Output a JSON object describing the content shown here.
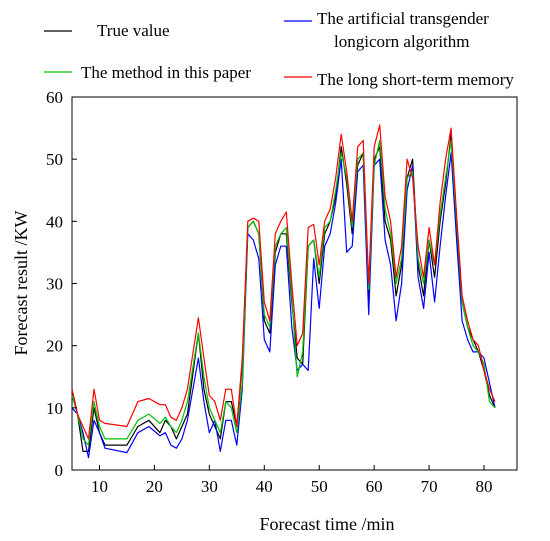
{
  "chart_data": {
    "type": "line",
    "xlabel": "Forecast time /min",
    "ylabel": "Forecast result /KW",
    "xlim": [
      5,
      86
    ],
    "ylim": [
      0,
      60
    ],
    "xticks": [
      10,
      20,
      30,
      40,
      50,
      60,
      70,
      80
    ],
    "yticks": [
      0,
      10,
      20,
      30,
      40,
      50,
      60
    ],
    "grid": false,
    "legend": [
      {
        "name": "True value",
        "color": "#000000"
      },
      {
        "name": "The artificial transgender longicorn algorithm",
        "name_line1": "The artificial transgender",
        "name_line2": "longicorn algorithm",
        "color": "#0000ff"
      },
      {
        "name": "The method in this paper",
        "color": "#00c000"
      },
      {
        "name": "The long short-term memory",
        "color": "#ff0000"
      }
    ],
    "series": [
      {
        "name": "True value",
        "color": "#000000",
        "points": [
          [
            5,
            13
          ],
          [
            6,
            9
          ],
          [
            7,
            3
          ],
          [
            8,
            3
          ],
          [
            9,
            10
          ],
          [
            10,
            6
          ],
          [
            11,
            4
          ],
          [
            15,
            4
          ],
          [
            17,
            7
          ],
          [
            19,
            8
          ],
          [
            21,
            6
          ],
          [
            22,
            8
          ],
          [
            23,
            7
          ],
          [
            24,
            5
          ],
          [
            25,
            7
          ],
          [
            26,
            9
          ],
          [
            28,
            22
          ],
          [
            29,
            13
          ],
          [
            30,
            9
          ],
          [
            31,
            7
          ],
          [
            32,
            5
          ],
          [
            33,
            11
          ],
          [
            34,
            11
          ],
          [
            35,
            7
          ],
          [
            36,
            17
          ],
          [
            37,
            39
          ],
          [
            38,
            40
          ],
          [
            39,
            38
          ],
          [
            40,
            24
          ],
          [
            41,
            22
          ],
          [
            42,
            35
          ],
          [
            43,
            38
          ],
          [
            44,
            38
          ],
          [
            45,
            27
          ],
          [
            46,
            18
          ],
          [
            47,
            17
          ],
          [
            48,
            36
          ],
          [
            49,
            37
          ],
          [
            50,
            30
          ],
          [
            51,
            38
          ],
          [
            52,
            40
          ],
          [
            53,
            44
          ],
          [
            54,
            52
          ],
          [
            55,
            46
          ],
          [
            56,
            38
          ],
          [
            57,
            49
          ],
          [
            58,
            51
          ],
          [
            59,
            27
          ],
          [
            60,
            50
          ],
          [
            61,
            52
          ],
          [
            62,
            40
          ],
          [
            63,
            37
          ],
          [
            64,
            28
          ],
          [
            65,
            33
          ],
          [
            66,
            47
          ],
          [
            67,
            50
          ],
          [
            68,
            33
          ],
          [
            69,
            28
          ],
          [
            70,
            37
          ],
          [
            71,
            31
          ],
          [
            72,
            40
          ],
          [
            73,
            46
          ],
          [
            74,
            54
          ],
          [
            75,
            38
          ],
          [
            76,
            27
          ],
          [
            77,
            23
          ],
          [
            78,
            21
          ],
          [
            79,
            19
          ],
          [
            80,
            16
          ],
          [
            81,
            12
          ],
          [
            82,
            10
          ]
        ]
      },
      {
        "name": "The artificial transgender longicorn algorithm",
        "color": "#0000ff",
        "points": [
          [
            5,
            10
          ],
          [
            6,
            9
          ],
          [
            7,
            6
          ],
          [
            8,
            2
          ],
          [
            9,
            8
          ],
          [
            10,
            6
          ],
          [
            11,
            3.5
          ],
          [
            15,
            2.8
          ],
          [
            17,
            6
          ],
          [
            19,
            7
          ],
          [
            21,
            5.5
          ],
          [
            22,
            6
          ],
          [
            23,
            4
          ],
          [
            24,
            3.5
          ],
          [
            25,
            5
          ],
          [
            26,
            8
          ],
          [
            28,
            18
          ],
          [
            29,
            11
          ],
          [
            30,
            6
          ],
          [
            31,
            8
          ],
          [
            32,
            3
          ],
          [
            33,
            8
          ],
          [
            34,
            8
          ],
          [
            35,
            4
          ],
          [
            36,
            13
          ],
          [
            37,
            38
          ],
          [
            38,
            37
          ],
          [
            39,
            34
          ],
          [
            40,
            21
          ],
          [
            41,
            19
          ],
          [
            42,
            33
          ],
          [
            43,
            36
          ],
          [
            44,
            36
          ],
          [
            45,
            23
          ],
          [
            46,
            16
          ],
          [
            47,
            17
          ],
          [
            48,
            16
          ],
          [
            49,
            34
          ],
          [
            50,
            26
          ],
          [
            51,
            36
          ],
          [
            52,
            38
          ],
          [
            53,
            43
          ],
          [
            54,
            50
          ],
          [
            55,
            35
          ],
          [
            56,
            36
          ],
          [
            57,
            48
          ],
          [
            58,
            49
          ],
          [
            59,
            25
          ],
          [
            60,
            49
          ],
          [
            61,
            50
          ],
          [
            62,
            37
          ],
          [
            63,
            33
          ],
          [
            64,
            24
          ],
          [
            65,
            30
          ],
          [
            66,
            45
          ],
          [
            67,
            49
          ],
          [
            68,
            31
          ],
          [
            69,
            26
          ],
          [
            70,
            35
          ],
          [
            71,
            27
          ],
          [
            72,
            36
          ],
          [
            73,
            44
          ],
          [
            74,
            51
          ],
          [
            75,
            37
          ],
          [
            76,
            24
          ],
          [
            77,
            21
          ],
          [
            78,
            19
          ],
          [
            79,
            19
          ],
          [
            80,
            18
          ],
          [
            81,
            14
          ],
          [
            82,
            10
          ]
        ]
      },
      {
        "name": "The method in this paper",
        "color": "#00c000",
        "points": [
          [
            5,
            12
          ],
          [
            6,
            9
          ],
          [
            7,
            5
          ],
          [
            8,
            4
          ],
          [
            9,
            11
          ],
          [
            10,
            7
          ],
          [
            11,
            5
          ],
          [
            15,
            5
          ],
          [
            17,
            8
          ],
          [
            19,
            9
          ],
          [
            21,
            7.5
          ],
          [
            22,
            8.5
          ],
          [
            23,
            7
          ],
          [
            24,
            6
          ],
          [
            25,
            8
          ],
          [
            26,
            11
          ],
          [
            28,
            22
          ],
          [
            29,
            15
          ],
          [
            30,
            10
          ],
          [
            31,
            8
          ],
          [
            32,
            6
          ],
          [
            33,
            11
          ],
          [
            34,
            10
          ],
          [
            35,
            6
          ],
          [
            36,
            14
          ],
          [
            37,
            39
          ],
          [
            38,
            40
          ],
          [
            39,
            38
          ],
          [
            40,
            25
          ],
          [
            41,
            23
          ],
          [
            42,
            36
          ],
          [
            43,
            38
          ],
          [
            44,
            39
          ],
          [
            45,
            28
          ],
          [
            46,
            15
          ],
          [
            47,
            19
          ],
          [
            48,
            36
          ],
          [
            49,
            37
          ],
          [
            50,
            31
          ],
          [
            51,
            39
          ],
          [
            52,
            40
          ],
          [
            53,
            45
          ],
          [
            54,
            51
          ],
          [
            55,
            47
          ],
          [
            56,
            39
          ],
          [
            57,
            50
          ],
          [
            58,
            51
          ],
          [
            59,
            29
          ],
          [
            60,
            49
          ],
          [
            61,
            53
          ],
          [
            62,
            42
          ],
          [
            63,
            38
          ],
          [
            64,
            30
          ],
          [
            65,
            34
          ],
          [
            66,
            47
          ],
          [
            67,
            48
          ],
          [
            68,
            34
          ],
          [
            69,
            30
          ],
          [
            70,
            37
          ],
          [
            71,
            33
          ],
          [
            72,
            41
          ],
          [
            73,
            47
          ],
          [
            74,
            53
          ],
          [
            75,
            40
          ],
          [
            76,
            27
          ],
          [
            77,
            23
          ],
          [
            78,
            20
          ],
          [
            79,
            19
          ],
          [
            80,
            17
          ],
          [
            81,
            11
          ],
          [
            82,
            10
          ]
        ]
      },
      {
        "name": "The long short-term memory",
        "color": "#ff0000",
        "points": [
          [
            5,
            13
          ],
          [
            6,
            9
          ],
          [
            7,
            7
          ],
          [
            8,
            5
          ],
          [
            9,
            13
          ],
          [
            10,
            8
          ],
          [
            11,
            7.5
          ],
          [
            15,
            7
          ],
          [
            17,
            11
          ],
          [
            19,
            11.5
          ],
          [
            21,
            10.5
          ],
          [
            22,
            10.5
          ],
          [
            23,
            8.5
          ],
          [
            24,
            8
          ],
          [
            25,
            10
          ],
          [
            26,
            13
          ],
          [
            28,
            24.5
          ],
          [
            29,
            18
          ],
          [
            30,
            12
          ],
          [
            31,
            11
          ],
          [
            32,
            8
          ],
          [
            33,
            13
          ],
          [
            34,
            13
          ],
          [
            35,
            7
          ],
          [
            36,
            18
          ],
          [
            37,
            40
          ],
          [
            38,
            40.5
          ],
          [
            39,
            40
          ],
          [
            40,
            27
          ],
          [
            41,
            24
          ],
          [
            42,
            38
          ],
          [
            43,
            40
          ],
          [
            44,
            41.5
          ],
          [
            45,
            30
          ],
          [
            46,
            20
          ],
          [
            47,
            22
          ],
          [
            48,
            39
          ],
          [
            49,
            39.5
          ],
          [
            50,
            33
          ],
          [
            51,
            40
          ],
          [
            52,
            42
          ],
          [
            53,
            47
          ],
          [
            54,
            54
          ],
          [
            55,
            48
          ],
          [
            56,
            40
          ],
          [
            57,
            52
          ],
          [
            58,
            53
          ],
          [
            59,
            30
          ],
          [
            60,
            52
          ],
          [
            61,
            55.5
          ],
          [
            62,
            44
          ],
          [
            63,
            40
          ],
          [
            64,
            31
          ],
          [
            65,
            36
          ],
          [
            66,
            50
          ],
          [
            67,
            47
          ],
          [
            68,
            36
          ],
          [
            69,
            31
          ],
          [
            70,
            39
          ],
          [
            71,
            33
          ],
          [
            72,
            43
          ],
          [
            73,
            50
          ],
          [
            74,
            55
          ],
          [
            75,
            41
          ],
          [
            76,
            28
          ],
          [
            77,
            24
          ],
          [
            78,
            21
          ],
          [
            79,
            20
          ],
          [
            80,
            16
          ],
          [
            81,
            13
          ],
          [
            82,
            11
          ]
        ]
      }
    ]
  }
}
